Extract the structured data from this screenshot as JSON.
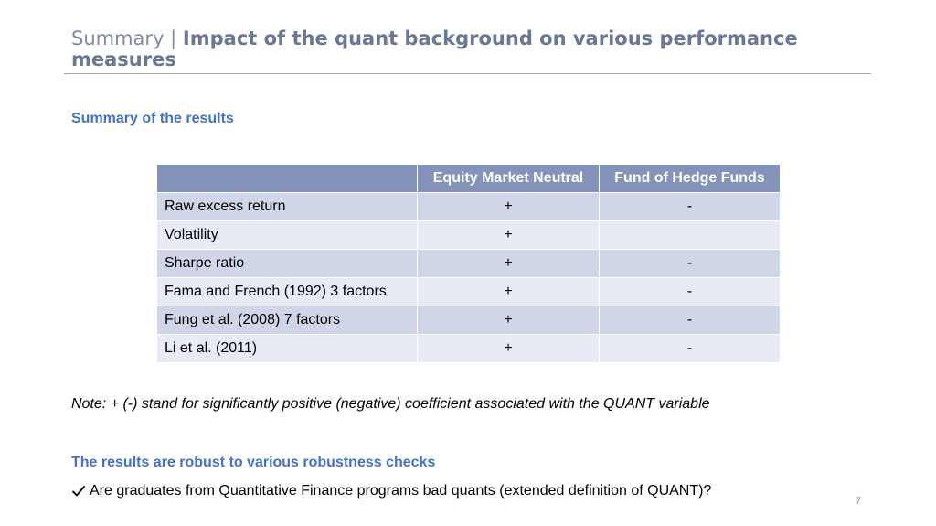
{
  "title": {
    "prefix": "Summary | ",
    "emphasis": "Impact of the quant background on various performance measures"
  },
  "section1_heading": "Summary of the results",
  "table": {
    "headers": [
      "",
      "Equity Market Neutral",
      "Fund of Hedge Funds"
    ],
    "rows": [
      [
        "Raw excess return",
        "+",
        "-"
      ],
      [
        "Volatility",
        "+",
        ""
      ],
      [
        "Sharpe ratio",
        "+",
        "-"
      ],
      [
        "Fama and French (1992) 3 factors",
        "+",
        "-"
      ],
      [
        "Fung et al. (2008) 7 factors",
        "+",
        "-"
      ],
      [
        "Li et al. (2011)",
        "+",
        "-"
      ]
    ]
  },
  "note": "Note: + (-) stand for significantly positive (negative) coefficient associated with the QUANT variable",
  "section2_heading": "The results are robust to various robustness checks",
  "checklist": [
    {
      "icon": "checkmark-icon",
      "text": "Are graduates from Quantitative Finance programs bad quants (extended definition of QUANT)?"
    }
  ],
  "page_number": "7",
  "colors": {
    "header_bg": "#8393ba",
    "row_odd": "#d0d5e8",
    "row_even": "#e9ebf4",
    "heading_blue": "#4472c4",
    "title_gray": "#7f8aa3"
  }
}
